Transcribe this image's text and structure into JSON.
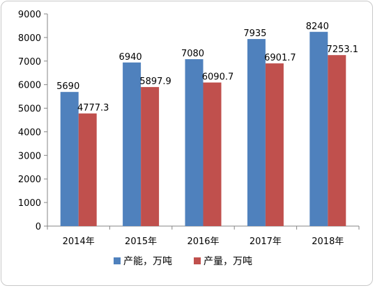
{
  "chart_data": {
    "type": "bar",
    "categories": [
      "2014年",
      "2015年",
      "2016年",
      "2017年",
      "2018年"
    ],
    "series": [
      {
        "name": "产能，万吨",
        "values": [
          5690,
          6940,
          7080,
          7935,
          8240
        ],
        "labels": [
          "5690",
          "6940",
          "7080",
          "7935",
          "8240"
        ],
        "color": "#4f81bd"
      },
      {
        "name": "产量，万吨",
        "values": [
          4777.3,
          5897.9,
          6090.7,
          6901.7,
          7253.1
        ],
        "labels": [
          "4777.3",
          "5897.9",
          "6090.7",
          "6901.7",
          "7253.1"
        ],
        "color": "#c0504d"
      }
    ],
    "ylim": [
      0,
      9000
    ],
    "yticks": [
      0,
      1000,
      2000,
      3000,
      4000,
      5000,
      6000,
      7000,
      8000,
      9000
    ],
    "grid": false,
    "legend_position": "bottom",
    "title": "",
    "xlabel": "",
    "ylabel": ""
  }
}
